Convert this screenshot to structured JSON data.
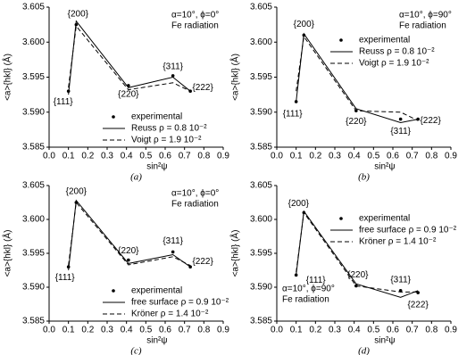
{
  "chart_data": [
    {
      "type": "line",
      "caption": "(a)",
      "x_label": "sin²ψ",
      "y_label": "<a>{hkl} (Å)",
      "annotations": [
        "α=10°, ϕ=0°",
        "Fe radiation"
      ],
      "x": [
        0.1,
        0.14,
        0.41,
        0.64,
        0.73
      ],
      "point_labels": [
        "{111}",
        "{200}",
        "{220}",
        "{311}",
        "{222}"
      ],
      "series": [
        {
          "name": "experimental",
          "color": "#000000",
          "style": "points",
          "values": [
            3.593,
            3.6025,
            3.5938,
            3.5952,
            3.593
          ]
        },
        {
          "name": "Reuss ρ = 0.8 10⁻²",
          "color": "#000000",
          "style": "solid",
          "values": [
            3.5925,
            3.603,
            3.5935,
            3.595,
            3.593
          ]
        },
        {
          "name": "Voigt ρ = 1.9 10⁻²",
          "color": "#000000",
          "style": "dashed",
          "values": [
            3.5935,
            3.6023,
            3.5932,
            3.5942,
            3.593
          ]
        }
      ],
      "xlim": [
        0,
        0.9
      ],
      "xticks": [
        {
          "value": 0,
          "label": "0.0"
        },
        0.1,
        0.2,
        0.3,
        0.4,
        0.5,
        0.6,
        0.7,
        0.8,
        0.9
      ],
      "ylim": [
        3.585,
        3.605
      ],
      "yticks": [
        3.585,
        {
          "value": 3.59,
          "label": "3.590"
        },
        3.595,
        {
          "value": 3.6,
          "label": "3.600"
        },
        3.605
      ],
      "legend": "lower right"
    },
    {
      "type": "line",
      "caption": "(b)",
      "x_label": "sin²ψ",
      "y_label": "<a>{hkl} (Å)",
      "annotations": [
        "α=10°, ϕ=90°",
        "Fe radiation"
      ],
      "x": [
        0.1,
        0.14,
        0.41,
        0.64,
        0.73
      ],
      "point_labels": [
        "{111}",
        "{200}",
        "{220}",
        "{311}",
        "{222}"
      ],
      "series": [
        {
          "name": "experimental",
          "color": "#000000",
          "style": "points",
          "values": [
            3.5915,
            3.601,
            3.5902,
            3.589,
            3.589
          ]
        },
        {
          "name": "Reuss ρ = 0.8 10⁻²",
          "color": "#000000",
          "style": "solid",
          "values": [
            3.5915,
            3.6012,
            3.5905,
            3.5885,
            3.589
          ]
        },
        {
          "name": "Voigt ρ = 1.9 10⁻²",
          "color": "#000000",
          "style": "dashed",
          "values": [
            3.593,
            3.6008,
            3.5902,
            3.59,
            3.5888
          ]
        }
      ],
      "xlim": [
        0,
        0.9
      ],
      "xticks": [
        {
          "value": 0,
          "label": "0.0"
        },
        0.1,
        0.2,
        0.3,
        0.4,
        0.5,
        0.6,
        0.7,
        0.8,
        0.9
      ],
      "ylim": [
        3.585,
        3.605
      ],
      "yticks": [
        3.585,
        {
          "value": 3.59,
          "label": "3.590"
        },
        3.595,
        {
          "value": 3.6,
          "label": "3.600"
        },
        3.605
      ],
      "legend": "upper right"
    },
    {
      "type": "line",
      "caption": "(c)",
      "x_label": "sin²ψ",
      "y_label": "<a>{hkl} (Å)",
      "annotations": [
        "α=10°, ϕ=0°",
        "Fe radiation"
      ],
      "x": [
        0.1,
        0.14,
        0.41,
        0.64,
        0.73
      ],
      "point_labels": [
        "{111}",
        "{200}",
        "{220}",
        "{311}",
        "{222}"
      ],
      "series": [
        {
          "name": "experimental",
          "color": "#000000",
          "style": "points",
          "values": [
            3.593,
            3.6025,
            3.594,
            3.5952,
            3.593
          ]
        },
        {
          "name": "free surface ρ = 0.9 10⁻²",
          "color": "#000000",
          "style": "solid",
          "values": [
            3.5925,
            3.6028,
            3.5935,
            3.5948,
            3.593
          ]
        },
        {
          "name": "Kröner ρ = 1.4 10⁻²",
          "color": "#000000",
          "style": "dashed",
          "values": [
            3.5932,
            3.6025,
            3.5933,
            3.5945,
            3.5932
          ]
        }
      ],
      "xlim": [
        0,
        0.9
      ],
      "xticks": [
        {
          "value": 0,
          "label": "0.0"
        },
        0.1,
        0.2,
        0.3,
        0.4,
        0.5,
        0.6,
        0.7,
        0.8,
        0.9
      ],
      "ylim": [
        3.585,
        3.605
      ],
      "yticks": [
        3.585,
        {
          "value": 3.59,
          "label": "3.590"
        },
        3.595,
        {
          "value": 3.6,
          "label": "3.600"
        },
        3.605
      ],
      "legend": "lower right"
    },
    {
      "type": "line",
      "caption": "(d)",
      "x_label": "sin²ψ",
      "y_label": "<a>{hkl} (Å)",
      "annotations": [
        "α=10°, ϕ=90°",
        "Fe radiation"
      ],
      "x": [
        0.1,
        0.14,
        0.41,
        0.64,
        0.73
      ],
      "point_labels": [
        "{111}",
        "{200}",
        "{220}",
        "{311}",
        "{222}"
      ],
      "series": [
        {
          "name": "experimental",
          "color": "#000000",
          "style": "points",
          "values": [
            3.5918,
            3.601,
            3.5902,
            3.5895,
            3.5892
          ]
        },
        {
          "name": "free surface ρ = 0.9 10⁻²",
          "color": "#000000",
          "style": "solid",
          "values": [
            3.5918,
            3.6012,
            3.5905,
            3.5885,
            3.5895
          ]
        },
        {
          "name": "Kröner ρ = 1.4 10⁻²",
          "color": "#000000",
          "style": "dashed",
          "values": [
            3.5922,
            3.601,
            3.5902,
            3.5893,
            3.5893
          ]
        }
      ],
      "xlim": [
        0,
        0.9
      ],
      "xticks": [
        {
          "value": 0,
          "label": "0.0"
        },
        0.1,
        0.2,
        0.3,
        0.4,
        0.5,
        0.6,
        0.7,
        0.8,
        0.9
      ],
      "ylim": [
        3.585,
        3.605
      ],
      "yticks": [
        3.585,
        {
          "value": 3.59,
          "label": "3.590"
        },
        3.595,
        {
          "value": 3.6,
          "label": "3.600"
        },
        3.605
      ],
      "legend": "upper right"
    }
  ]
}
